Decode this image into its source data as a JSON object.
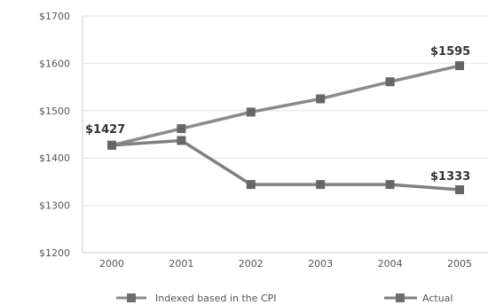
{
  "chart_data": {
    "type": "line",
    "x": [
      "2000",
      "2001",
      "2002",
      "2003",
      "2004",
      "2005"
    ],
    "series": [
      {
        "name": "Indexed based in the CPI",
        "values": [
          1427,
          1462,
          1497,
          1525,
          1561,
          1595
        ],
        "color": "#8a8a8a"
      },
      {
        "name": "Actual",
        "values": [
          1427,
          1437,
          1344,
          1344,
          1344,
          1333
        ],
        "color": "#808080"
      }
    ],
    "ylim": [
      1200,
      1700
    ],
    "yticks": [
      {
        "value": 1700,
        "label": "$1700"
      },
      {
        "value": 1600,
        "label": "$1600"
      },
      {
        "value": 1500,
        "label": "$1500"
      },
      {
        "value": 1400,
        "label": "$1400"
      },
      {
        "value": 1300,
        "label": "$1300"
      },
      {
        "value": 1200,
        "label": "$1200"
      }
    ],
    "annotations": [
      {
        "text": "$1427",
        "series": 1,
        "index": 0
      },
      {
        "text": "$1595",
        "series": 0,
        "index": 5
      },
      {
        "text": "$1333",
        "series": 1,
        "index": 5
      }
    ],
    "grid": true,
    "legend_position": "bottom"
  }
}
